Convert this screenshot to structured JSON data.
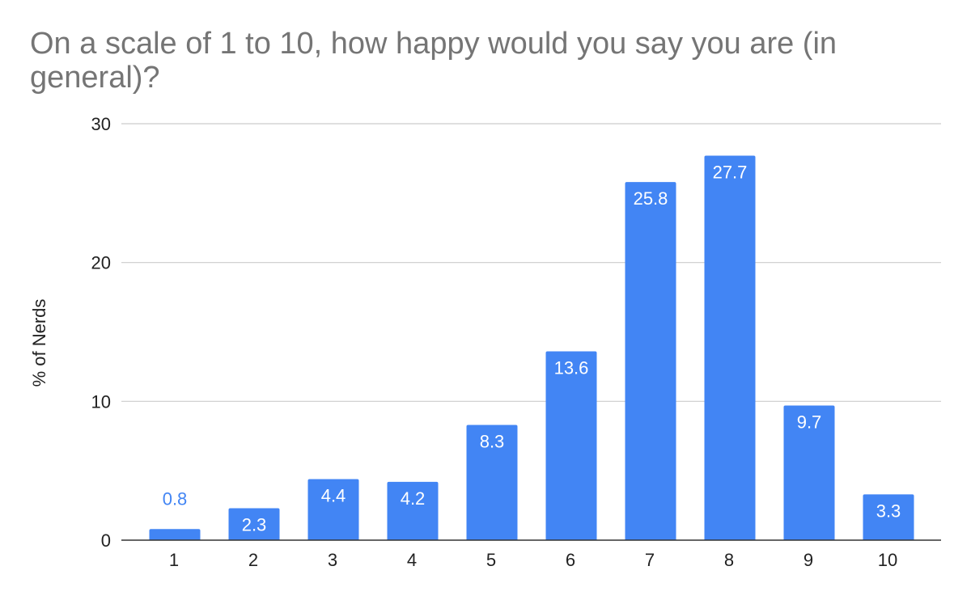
{
  "chart_data": {
    "type": "bar",
    "title": "On a scale of 1 to 10, how happy would you say you are (in general)?",
    "xlabel": "",
    "ylabel": "% of Nerds",
    "categories": [
      "1",
      "2",
      "3",
      "4",
      "5",
      "6",
      "7",
      "8",
      "9",
      "10"
    ],
    "series": [
      {
        "values": [
          0.8,
          2.3,
          4.4,
          4.2,
          8.3,
          13.6,
          25.8,
          27.7,
          9.7,
          3.3
        ]
      }
    ],
    "data_labels": [
      "0.8",
      "2.3",
      "4.4",
      "4.2",
      "8.3",
      "13.6",
      "25.8",
      "27.7",
      "9.7",
      "3.3"
    ],
    "ylim": [
      0,
      30
    ],
    "yticks": [
      "0",
      "10",
      "20",
      "30"
    ],
    "grid": true,
    "legend": "none",
    "colors": {
      "bar": "#4285f4",
      "label_inside": "#ffffff",
      "label_outside": "#4285f4",
      "gridline": "#cccccc",
      "axis": "#333333",
      "tick_text": "#222222",
      "title": "#757575"
    }
  }
}
